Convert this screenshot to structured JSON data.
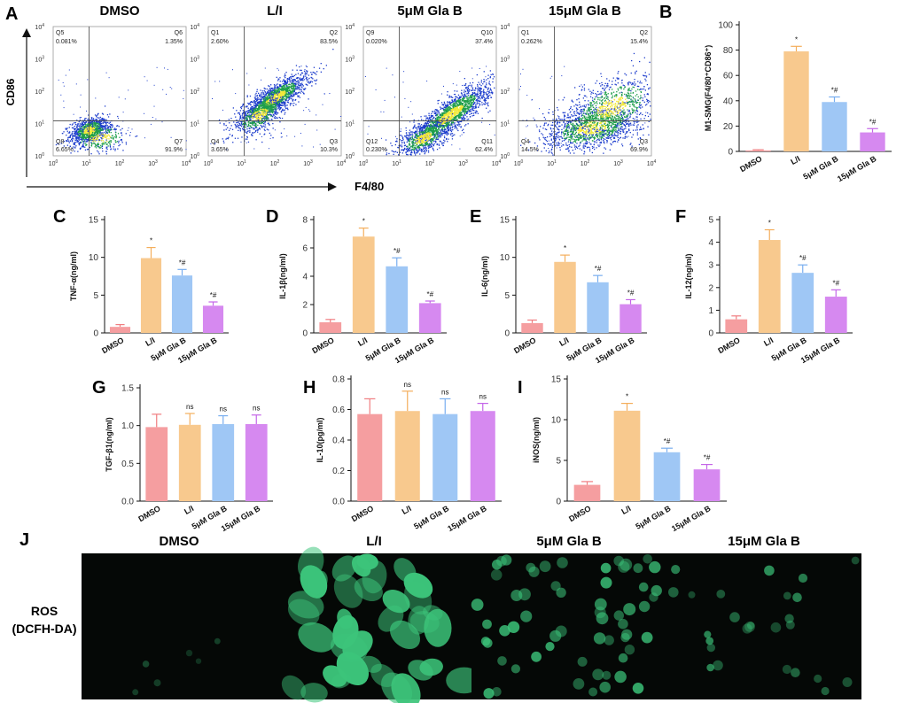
{
  "colors": {
    "DMSO": "#f59ea0",
    "L/I": "#f8c98e",
    "5uM": "#9fc7f5",
    "15uM": "#d689f0",
    "DMSO_err": "#f07d80",
    "L/I_err": "#f4ae5c",
    "5uM_err": "#78aeef",
    "15uM_err": "#c465e8",
    "density_low": "#1c3ccc",
    "density_mid": "#1e9e4a",
    "density_high": "#f2e838",
    "fluor": "#3cc47a"
  },
  "panel_letters": {
    "A": "A",
    "B": "B",
    "C": "C",
    "D": "D",
    "E": "E",
    "F": "F",
    "G": "G",
    "H": "H",
    "I": "I",
    "J": "J"
  },
  "flow": {
    "y_axis_label": "CD86",
    "x_axis_label": "F4/80",
    "tick_labels": [
      "10",
      "10",
      "10",
      "10",
      "10"
    ],
    "tick_exps": [
      "0",
      "1",
      "2",
      "3",
      "4"
    ],
    "panels": [
      {
        "title": "DMSO",
        "q_ul": "Q5",
        "q_ur": "Q6",
        "q_ll": "Q8",
        "q_lr": "Q7",
        "v_ul": "0.081%",
        "v_ur": "1.35%",
        "v_ll": "6.65%",
        "v_lr": "91.9%"
      },
      {
        "title": "L/I",
        "q_ul": "Q1",
        "q_ur": "Q2",
        "q_ll": "Q4",
        "q_lr": "Q3",
        "v_ul": "2.60%",
        "v_ur": "83.5%",
        "v_ll": "3.65%",
        "v_lr": "10.3%"
      },
      {
        "title": "5μM Gla B",
        "q_ul": "Q9",
        "q_ur": "Q10",
        "q_ll": "Q12",
        "q_lr": "Q11",
        "v_ul": "0.020%",
        "v_ur": "37.4%",
        "v_ll": "0.230%",
        "v_lr": "62.4%"
      },
      {
        "title": "15μM Gla B",
        "q_ul": "Q1",
        "q_ur": "Q2",
        "q_ll": "Q4",
        "q_lr": "Q3",
        "v_ul": "0.262%",
        "v_ur": "15.4%",
        "v_ll": "14.5%",
        "v_lr": "69.9%"
      }
    ]
  },
  "fluor": {
    "row_label": "ROS",
    "row_label2": "(DCFH-DA)",
    "titles": [
      "DMSO",
      "L/I",
      "5μM Gla B",
      "15μM Gla B"
    ]
  },
  "chart_data": [
    {
      "id": "B",
      "type": "bar",
      "categories": [
        "DMSO",
        "L/I",
        "5μM Gla B",
        "15μM Gla B"
      ],
      "values": [
        0.8,
        79,
        39,
        15
      ],
      "errors": [
        0.5,
        4,
        4,
        3
      ],
      "ylabel": "M1-SMG(F4/80⁺CD86⁺)",
      "ylim": [
        0,
        100
      ],
      "yticks": [
        0,
        20,
        40,
        60,
        80,
        100
      ],
      "ytick_labels": [
        "0",
        "20",
        "40",
        "60",
        "80",
        "100"
      ],
      "significance": [
        "",
        "*",
        "*#",
        "*#"
      ]
    },
    {
      "id": "C",
      "type": "bar",
      "categories": [
        "DMSO",
        "L/I",
        "5μM Gla B",
        "15μM Gla B"
      ],
      "values": [
        0.8,
        9.9,
        7.6,
        3.6
      ],
      "errors": [
        0.3,
        1.4,
        0.8,
        0.5
      ],
      "ylabel": "TNF-α(ng/ml)",
      "ylim": [
        0,
        15
      ],
      "yticks": [
        0,
        5,
        10,
        15
      ],
      "ytick_labels": [
        "0",
        "5",
        "10",
        "15"
      ],
      "significance": [
        "",
        "*",
        "*#",
        "*#"
      ]
    },
    {
      "id": "D",
      "type": "bar",
      "categories": [
        "DMSO",
        "L/I",
        "5μM Gla B",
        "15μM Gla B"
      ],
      "values": [
        0.75,
        6.8,
        4.7,
        2.1
      ],
      "errors": [
        0.2,
        0.6,
        0.6,
        0.15
      ],
      "ylabel": "IL-1β(ng/ml)",
      "ylim": [
        0,
        8
      ],
      "yticks": [
        0,
        2,
        4,
        6,
        8
      ],
      "ytick_labels": [
        "0",
        "2",
        "4",
        "6",
        "8"
      ],
      "significance": [
        "",
        "*",
        "*#",
        "*#"
      ]
    },
    {
      "id": "E",
      "type": "bar",
      "categories": [
        "DMSO",
        "L/I",
        "5μM Gla B",
        "15μM Gla B"
      ],
      "values": [
        1.3,
        9.4,
        6.7,
        3.8
      ],
      "errors": [
        0.4,
        0.9,
        0.9,
        0.6
      ],
      "ylabel": "IL-6(ng/ml)",
      "ylim": [
        0,
        15
      ],
      "yticks": [
        0,
        5,
        10,
        15
      ],
      "ytick_labels": [
        "0",
        "5",
        "10",
        "15"
      ],
      "significance": [
        "",
        "*",
        "*#",
        "*#"
      ]
    },
    {
      "id": "F",
      "type": "bar",
      "categories": [
        "DMSO",
        "L/I",
        "5μM Gla B",
        "15μM Gla B"
      ],
      "values": [
        0.6,
        4.1,
        2.65,
        1.6
      ],
      "errors": [
        0.15,
        0.45,
        0.35,
        0.3
      ],
      "ylabel": "IL-12(ng/ml)",
      "ylim": [
        0,
        5
      ],
      "yticks": [
        0,
        1,
        2,
        3,
        4,
        5
      ],
      "ytick_labels": [
        "0",
        "1",
        "2",
        "3",
        "4",
        "5"
      ],
      "significance": [
        "",
        "*",
        "*#",
        "*#"
      ]
    },
    {
      "id": "G",
      "type": "bar",
      "categories": [
        "DMSO",
        "L/I",
        "5μM Gla B",
        "15μM Gla B"
      ],
      "values": [
        0.98,
        1.01,
        1.02,
        1.02
      ],
      "errors": [
        0.17,
        0.15,
        0.11,
        0.12
      ],
      "ylabel": "TGF-β1(ng/ml)",
      "ylim": [
        0,
        1.5
      ],
      "yticks": [
        0,
        0.5,
        1.0,
        1.5
      ],
      "ytick_labels": [
        "0.0",
        "0.5",
        "1.0",
        "1.5"
      ],
      "significance": [
        "",
        "ns",
        "ns",
        "ns"
      ]
    },
    {
      "id": "H",
      "type": "bar",
      "categories": [
        "DMSO",
        "L/I",
        "5μM Gla B",
        "15μM Gla B"
      ],
      "values": [
        0.57,
        0.59,
        0.57,
        0.59
      ],
      "errors": [
        0.1,
        0.13,
        0.1,
        0.05
      ],
      "ylabel": "IL-10(pg/ml)",
      "ylim": [
        0,
        0.8
      ],
      "yticks": [
        0,
        0.2,
        0.4,
        0.6,
        0.8
      ],
      "ytick_labels": [
        "0.0",
        "0.2",
        "0.4",
        "0.6",
        "0.8"
      ],
      "significance": [
        "",
        "ns",
        "ns",
        "ns"
      ]
    },
    {
      "id": "I",
      "type": "bar",
      "categories": [
        "DMSO",
        "L/I",
        "5μM Gla B",
        "15μM Gla B"
      ],
      "values": [
        2.0,
        11.1,
        6.0,
        3.9
      ],
      "errors": [
        0.4,
        0.9,
        0.5,
        0.6
      ],
      "ylabel": "iNOS(ng/ml)",
      "ylim": [
        0,
        15
      ],
      "yticks": [
        0,
        5,
        10,
        15
      ],
      "ytick_labels": [
        "0",
        "5",
        "10",
        "15"
      ],
      "significance": [
        "",
        "*",
        "*#",
        "*#"
      ]
    }
  ]
}
